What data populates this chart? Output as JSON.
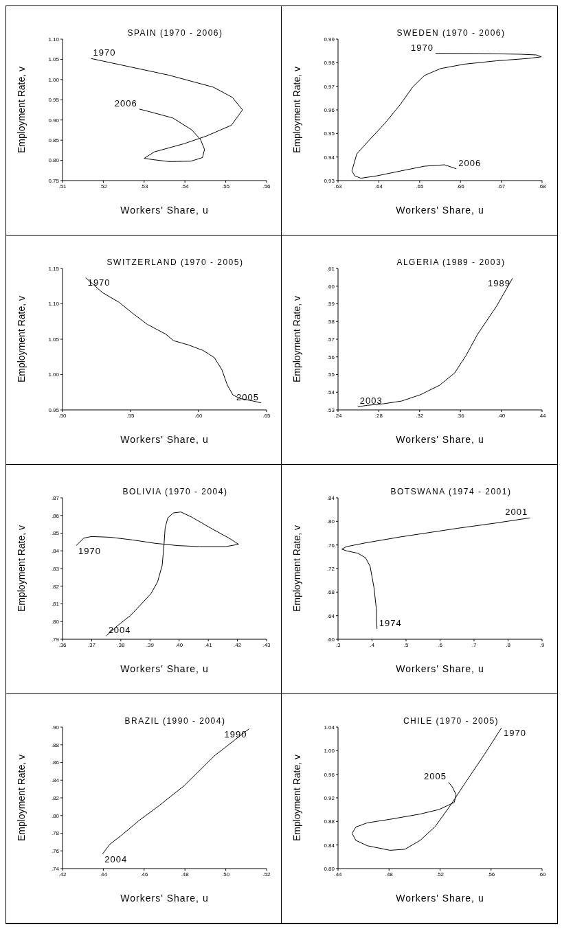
{
  "chart_data": [
    {
      "type": "line",
      "title": "SPAIN (1970 - 2006)",
      "xlabel": "Workers' Share, u",
      "ylabel": "Employment Rate, v",
      "xlim": [
        0.51,
        0.56
      ],
      "ylim": [
        0.75,
        1.1
      ],
      "xticks": [
        {
          "value": 0.51,
          "label": ".51"
        },
        {
          "value": 0.52,
          "label": ".52"
        },
        {
          "value": 0.53,
          "label": ".53"
        },
        {
          "value": 0.54,
          "label": ".54"
        },
        {
          "value": 0.55,
          "label": ".55"
        },
        {
          "value": 0.56,
          "label": ".56"
        }
      ],
      "yticks": [
        {
          "value": 0.75,
          "label": "0.75"
        },
        {
          "value": 0.8,
          "label": "0.80"
        },
        {
          "value": 0.85,
          "label": "0.85"
        },
        {
          "value": 0.9,
          "label": "0.90"
        },
        {
          "value": 0.95,
          "label": "0.95"
        },
        {
          "value": 1.0,
          "label": "1.00"
        },
        {
          "value": 1.05,
          "label": "1.05"
        },
        {
          "value": 1.1,
          "label": "1.10"
        }
      ],
      "series": [
        {
          "color": "#000000",
          "x": [
            0.517,
            0.536,
            0.547,
            0.5516,
            0.5541,
            0.5514,
            0.5452,
            0.5397,
            0.5325,
            0.53,
            0.532,
            0.5361,
            0.5415,
            0.5443,
            0.5448,
            0.5438,
            0.5416,
            0.537,
            0.5315,
            0.5288
          ],
          "values": [
            1.052,
            1.011,
            0.981,
            0.956,
            0.925,
            0.887,
            0.86,
            0.841,
            0.821,
            0.805,
            0.802,
            0.797,
            0.798,
            0.807,
            0.827,
            0.852,
            0.876,
            0.905,
            0.92,
            0.927
          ]
        }
      ],
      "annotations": [
        {
          "text": "1970",
          "x": 0.517,
          "y": 1.052
        },
        {
          "text": "2006",
          "x": 0.5288,
          "y": 0.927
        }
      ]
    },
    {
      "type": "line",
      "title": "SWEDEN (1970 - 2006)",
      "xlabel": "Workers' Share, u",
      "ylabel": "Employment Rate, v",
      "xlim": [
        0.63,
        0.68
      ],
      "ylim": [
        0.93,
        0.99
      ],
      "xticks": [
        {
          "value": 0.63,
          "label": ".63"
        },
        {
          "value": 0.64,
          "label": ".64"
        },
        {
          "value": 0.65,
          "label": ".65"
        },
        {
          "value": 0.66,
          "label": ".66"
        },
        {
          "value": 0.67,
          "label": ".67"
        },
        {
          "value": 0.68,
          "label": ".68"
        }
      ],
      "yticks": [
        {
          "value": 0.93,
          "label": "0.93"
        },
        {
          "value": 0.94,
          "label": "0.94"
        },
        {
          "value": 0.95,
          "label": "0.95"
        },
        {
          "value": 0.96,
          "label": "0.96"
        },
        {
          "value": 0.97,
          "label": "0.97"
        },
        {
          "value": 0.98,
          "label": "0.98"
        },
        {
          "value": 0.99,
          "label": "0.99"
        }
      ],
      "series": [
        {
          "color": "#000000",
          "x": [
            0.6539,
            0.6644,
            0.6746,
            0.6786,
            0.6798,
            0.6766,
            0.6688,
            0.661,
            0.6551,
            0.6512,
            0.6483,
            0.6454,
            0.6414,
            0.6375,
            0.6346,
            0.6334,
            0.6341,
            0.6356,
            0.6395,
            0.6454,
            0.6512,
            0.6561,
            0.659
          ],
          "values": [
            0.984,
            0.9839,
            0.9836,
            0.9833,
            0.9825,
            0.9818,
            0.9808,
            0.9794,
            0.9775,
            0.9746,
            0.9697,
            0.9626,
            0.9541,
            0.9469,
            0.9413,
            0.9341,
            0.932,
            0.931,
            0.932,
            0.9341,
            0.9361,
            0.9367,
            0.935
          ]
        }
      ],
      "annotations": [
        {
          "text": "1970",
          "x": 0.6539,
          "y": 0.984
        },
        {
          "text": "2006",
          "x": 0.659,
          "y": 0.935
        }
      ]
    },
    {
      "type": "line",
      "title": "SWITZERLAND (1970 - 2005)",
      "xlabel": "Workers' Share, u",
      "ylabel": "Employment Rate, v",
      "xlim": [
        0.5,
        0.65
      ],
      "ylim": [
        0.95,
        1.15
      ],
      "xticks": [
        {
          "value": 0.5,
          "label": ".50"
        },
        {
          "value": 0.55,
          "label": ".55"
        },
        {
          "value": 0.6,
          "label": ".60"
        },
        {
          "value": 0.65,
          "label": ".65"
        }
      ],
      "yticks": [
        {
          "value": 0.95,
          "label": "0.95"
        },
        {
          "value": 1.0,
          "label": "1.00"
        },
        {
          "value": 1.05,
          "label": "1.05"
        },
        {
          "value": 1.1,
          "label": "1.10"
        },
        {
          "value": 1.15,
          "label": "1.15"
        }
      ],
      "series": [
        {
          "color": "#000000",
          "x": [
            0.517,
            0.5293,
            0.5417,
            0.5513,
            0.5623,
            0.576,
            0.5815,
            0.5924,
            0.6034,
            0.6116,
            0.6171,
            0.6212,
            0.6253,
            0.6308,
            0.6391,
            0.6459
          ],
          "values": [
            1.137,
            1.116,
            1.102,
            1.087,
            1.071,
            1.057,
            1.048,
            1.042,
            1.034,
            1.024,
            1.007,
            0.985,
            0.971,
            0.966,
            0.963,
            0.96
          ]
        }
      ],
      "annotations": [
        {
          "text": "1970",
          "x": 0.517,
          "y": 1.137
        },
        {
          "text": "2005",
          "x": 0.6459,
          "y": 0.96
        }
      ]
    },
    {
      "type": "line",
      "title": "ALGERIA (1989 - 2003)",
      "xlabel": "Workers' Share, u",
      "ylabel": "Employment Rate, v",
      "xlim": [
        0.24,
        0.44
      ],
      "ylim": [
        0.53,
        0.61
      ],
      "xticks": [
        {
          "value": 0.24,
          "label": ".24"
        },
        {
          "value": 0.28,
          "label": ".28"
        },
        {
          "value": 0.32,
          "label": ".32"
        },
        {
          "value": 0.36,
          "label": ".36"
        },
        {
          "value": 0.4,
          "label": ".40"
        },
        {
          "value": 0.44,
          "label": ".44"
        }
      ],
      "yticks": [
        {
          "value": 0.53,
          "label": ".53"
        },
        {
          "value": 0.54,
          "label": ".54"
        },
        {
          "value": 0.55,
          "label": ".55"
        },
        {
          "value": 0.56,
          "label": ".56"
        },
        {
          "value": 0.57,
          "label": ".57"
        },
        {
          "value": 0.58,
          "label": ".58"
        },
        {
          "value": 0.59,
          "label": ".59"
        },
        {
          "value": 0.6,
          "label": ".60"
        },
        {
          "value": 0.61,
          "label": ".61"
        }
      ],
      "series": [
        {
          "color": "#000000",
          "x": [
            0.411,
            0.3953,
            0.3767,
            0.3655,
            0.3543,
            0.3394,
            0.3208,
            0.3022,
            0.2836,
            0.2687,
            0.2594
          ],
          "values": [
            0.6044,
            0.5886,
            0.5727,
            0.5608,
            0.5509,
            0.5439,
            0.5386,
            0.535,
            0.5334,
            0.5326,
            0.5318
          ]
        }
      ],
      "annotations": [
        {
          "text": "1989",
          "x": 0.411,
          "y": 0.6044
        },
        {
          "text": "2003",
          "x": 0.2594,
          "y": 0.5318
        }
      ]
    },
    {
      "type": "line",
      "title": "BOLIVIA (1970 - 2004)",
      "xlabel": "Workers' Share, u",
      "ylabel": "Employment Rate, v",
      "xlim": [
        0.36,
        0.43
      ],
      "ylim": [
        0.79,
        0.87
      ],
      "xticks": [
        {
          "value": 0.36,
          "label": ".36"
        },
        {
          "value": 0.37,
          "label": ".37"
        },
        {
          "value": 0.38,
          "label": ".38"
        },
        {
          "value": 0.39,
          "label": ".39"
        },
        {
          "value": 0.4,
          "label": ".40"
        },
        {
          "value": 0.41,
          "label": ".41"
        },
        {
          "value": 0.42,
          "label": ".42"
        },
        {
          "value": 0.43,
          "label": ".43"
        }
      ],
      "yticks": [
        {
          "value": 0.79,
          "label": ".79"
        },
        {
          "value": 0.8,
          "label": ".80"
        },
        {
          "value": 0.81,
          "label": ".81"
        },
        {
          "value": 0.82,
          "label": ".82"
        },
        {
          "value": 0.83,
          "label": ".83"
        },
        {
          "value": 0.84,
          "label": ".84"
        },
        {
          "value": 0.85,
          "label": ".85"
        },
        {
          "value": 0.86,
          "label": ".86"
        },
        {
          "value": 0.87,
          "label": ".87"
        }
      ],
      "series": [
        {
          "color": "#000000",
          "x": [
            0.3647,
            0.3673,
            0.3699,
            0.3763,
            0.3839,
            0.3916,
            0.3993,
            0.407,
            0.416,
            0.4204,
            0.4172,
            0.4108,
            0.4044,
            0.4006,
            0.398,
            0.3961,
            0.3952,
            0.3948,
            0.3942,
            0.3926,
            0.3903,
            0.3865,
            0.3833,
            0.3788,
            0.375
          ],
          "values": [
            0.843,
            0.8472,
            0.8481,
            0.8477,
            0.8462,
            0.8443,
            0.843,
            0.8424,
            0.8424,
            0.8437,
            0.8471,
            0.8529,
            0.859,
            0.862,
            0.8614,
            0.8586,
            0.8529,
            0.8433,
            0.8319,
            0.8224,
            0.8157,
            0.809,
            0.8034,
            0.7976,
            0.7919
          ]
        }
      ],
      "annotations": [
        {
          "text": "1970",
          "x": 0.3647,
          "y": 0.843
        },
        {
          "text": "2004",
          "x": 0.375,
          "y": 0.7919
        }
      ]
    },
    {
      "type": "line",
      "title": "BOTSWANA (1974 - 2001)",
      "xlabel": "Workers' Share, u",
      "ylabel": "Employment Rate, v",
      "xlim": [
        0.3,
        0.9
      ],
      "ylim": [
        0.6,
        0.84
      ],
      "xticks": [
        {
          "value": 0.3,
          "label": ".3"
        },
        {
          "value": 0.4,
          "label": ".4"
        },
        {
          "value": 0.5,
          "label": ".5"
        },
        {
          "value": 0.6,
          "label": ".6"
        },
        {
          "value": 0.7,
          "label": ".7"
        },
        {
          "value": 0.8,
          "label": ".8"
        },
        {
          "value": 0.9,
          "label": ".9"
        }
      ],
      "yticks": [
        {
          "value": 0.6,
          "label": ".60"
        },
        {
          "value": 0.64,
          "label": ".64"
        },
        {
          "value": 0.68,
          "label": ".68"
        },
        {
          "value": 0.72,
          "label": ".72"
        },
        {
          "value": 0.76,
          "label": ".76"
        },
        {
          "value": 0.8,
          "label": ".80"
        },
        {
          "value": 0.84,
          "label": ".84"
        }
      ],
      "series": [
        {
          "color": "#000000",
          "x": [
            0.4146,
            0.4124,
            0.4056,
            0.3944,
            0.3809,
            0.3584,
            0.3247,
            0.3112,
            0.3247,
            0.3809,
            0.482,
            0.6506,
            0.763,
            0.864
          ],
          "values": [
            0.6176,
            0.653,
            0.6882,
            0.7235,
            0.7382,
            0.7459,
            0.75,
            0.7529,
            0.7571,
            0.7635,
            0.7735,
            0.7882,
            0.7971,
            0.8059
          ]
        }
      ],
      "annotations": [
        {
          "text": "1974",
          "x": 0.4146,
          "y": 0.6176
        },
        {
          "text": "2001",
          "x": 0.864,
          "y": 0.8059
        }
      ]
    },
    {
      "type": "line",
      "title": "BRAZIL (1990 - 2004)",
      "xlabel": "Workers' Share, u",
      "ylabel": "Employment Rate, v",
      "xlim": [
        0.42,
        0.52
      ],
      "ylim": [
        0.74,
        0.9
      ],
      "xticks": [
        {
          "value": 0.42,
          "label": ".42"
        },
        {
          "value": 0.44,
          "label": ".44"
        },
        {
          "value": 0.46,
          "label": ".46"
        },
        {
          "value": 0.48,
          "label": ".48"
        },
        {
          "value": 0.5,
          "label": ".50"
        },
        {
          "value": 0.52,
          "label": ".52"
        }
      ],
      "yticks": [
        {
          "value": 0.74,
          "label": ".74"
        },
        {
          "value": 0.76,
          "label": ".76"
        },
        {
          "value": 0.78,
          "label": ".78"
        },
        {
          "value": 0.8,
          "label": ".80"
        },
        {
          "value": 0.82,
          "label": ".82"
        },
        {
          "value": 0.84,
          "label": ".84"
        },
        {
          "value": 0.86,
          "label": ".86"
        },
        {
          "value": 0.88,
          "label": ".88"
        },
        {
          "value": 0.9,
          "label": ".90"
        }
      ],
      "series": [
        {
          "color": "#000000",
          "x": [
            0.5114,
            0.4944,
            0.4798,
            0.467,
            0.4578,
            0.4487,
            0.4432,
            0.4396
          ],
          "values": [
            0.898,
            0.8675,
            0.8341,
            0.8106,
            0.7949,
            0.7773,
            0.7675,
            0.7565
          ]
        }
      ],
      "annotations": [
        {
          "text": "1990",
          "x": 0.5114,
          "y": 0.898
        },
        {
          "text": "2004",
          "x": 0.4396,
          "y": 0.7565
        }
      ]
    },
    {
      "type": "line",
      "title": "CHILE (1970 - 2005)",
      "xlabel": "Workers' Share, u",
      "ylabel": "Employment Rate, v",
      "xlim": [
        0.44,
        0.6
      ],
      "ylim": [
        0.8,
        1.04
      ],
      "xticks": [
        {
          "value": 0.44,
          "label": ".44"
        },
        {
          "value": 0.48,
          "label": ".48"
        },
        {
          "value": 0.52,
          "label": ".52"
        },
        {
          "value": 0.56,
          "label": ".56"
        },
        {
          "value": 0.6,
          "label": ".60"
        }
      ],
      "yticks": [
        {
          "value": 0.8,
          "label": "0.80"
        },
        {
          "value": 0.84,
          "label": "0.84"
        },
        {
          "value": 0.88,
          "label": "0.88"
        },
        {
          "value": 0.92,
          "label": "0.92"
        },
        {
          "value": 0.96,
          "label": "0.96"
        },
        {
          "value": 1.0,
          "label": "1.00"
        },
        {
          "value": 1.04,
          "label": "1.04"
        }
      ],
      "series": [
        {
          "color": "#000000",
          "x": [
            0.5682,
            0.5549,
            0.54,
            0.5282,
            0.5163,
            0.5044,
            0.4925,
            0.4807,
            0.4629,
            0.454,
            0.451,
            0.454,
            0.4629,
            0.4807,
            0.5044,
            0.5193,
            0.5311,
            0.5326,
            0.5296,
            0.5267
          ],
          "values": [
            1.0388,
            0.994,
            0.9463,
            0.9075,
            0.8717,
            0.8478,
            0.8328,
            0.831,
            0.8388,
            0.8478,
            0.8597,
            0.8704,
            0.8776,
            0.8836,
            0.8925,
            0.9003,
            0.9122,
            0.9254,
            0.9385,
            0.9463
          ]
        }
      ],
      "annotations": [
        {
          "text": "1970",
          "x": 0.5682,
          "y": 1.0388
        },
        {
          "text": "2005",
          "x": 0.5267,
          "y": 0.9463
        }
      ]
    }
  ]
}
